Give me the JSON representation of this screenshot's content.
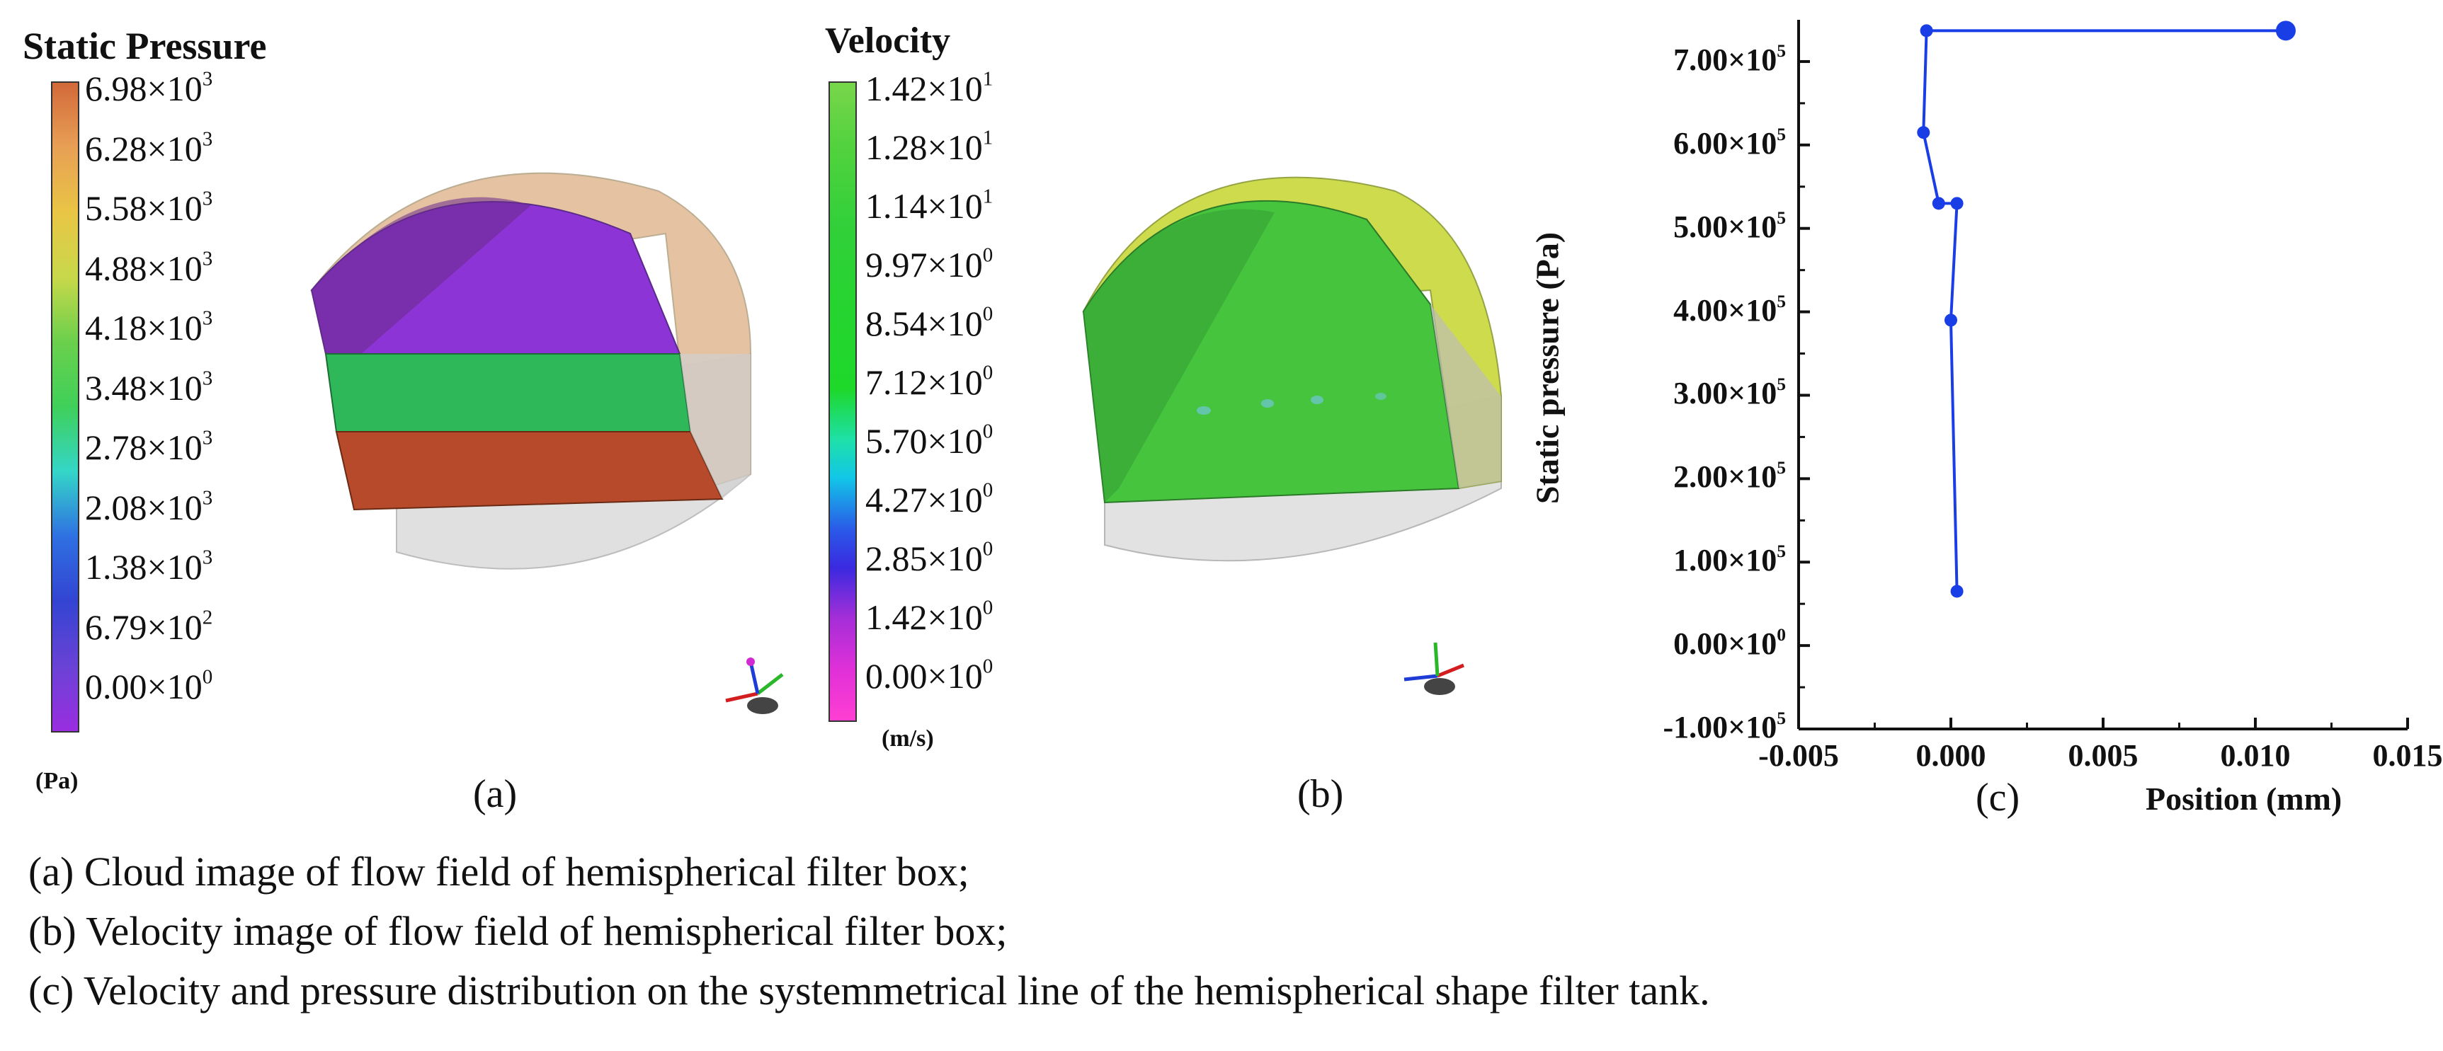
{
  "panel_a": {
    "title": "Static Pressure",
    "unit": "(Pa)",
    "label": "(a)",
    "ticks": [
      {
        "m": "6.98",
        "e": "3"
      },
      {
        "m": "6.28",
        "e": "3"
      },
      {
        "m": "5.58",
        "e": "3"
      },
      {
        "m": "4.88",
        "e": "3"
      },
      {
        "m": "4.18",
        "e": "3"
      },
      {
        "m": "3.48",
        "e": "3"
      },
      {
        "m": "2.78",
        "e": "3"
      },
      {
        "m": "2.08",
        "e": "3"
      },
      {
        "m": "1.38",
        "e": "3"
      },
      {
        "m": "6.79",
        "e": "2"
      },
      {
        "m": "0.00",
        "e": "0"
      }
    ],
    "colors": {
      "top": "#d2693a",
      "bottom": "#9a2ee0"
    }
  },
  "panel_b": {
    "title": "Velocity",
    "unit": "(m/s)",
    "label": "(b)",
    "ticks": [
      {
        "m": "1.42",
        "e": "1"
      },
      {
        "m": "1.28",
        "e": "1"
      },
      {
        "m": "1.14",
        "e": "1"
      },
      {
        "m": "9.97",
        "e": "0"
      },
      {
        "m": "8.54",
        "e": "0"
      },
      {
        "m": "7.12",
        "e": "0"
      },
      {
        "m": "5.70",
        "e": "0"
      },
      {
        "m": "4.27",
        "e": "0"
      },
      {
        "m": "2.85",
        "e": "0"
      },
      {
        "m": "1.42",
        "e": "0"
      },
      {
        "m": "0.00",
        "e": "0"
      }
    ],
    "colors": {
      "top": "#78d64a",
      "bottom": "#ff3fd2"
    }
  },
  "chart_data": {
    "type": "line",
    "label": "(c)",
    "xlabel": "Position (mm)",
    "ylabel": "Static pressure (Pa)",
    "xlim": [
      -0.005,
      0.015
    ],
    "ylim": [
      -100000,
      750000
    ],
    "x_ticks": [
      "-0.005",
      "0.000",
      "0.005",
      "0.010",
      "0.015"
    ],
    "y_ticks": [
      {
        "m": "7.00",
        "e": "5"
      },
      {
        "m": "6.00",
        "e": "5"
      },
      {
        "m": "5.00",
        "e": "5"
      },
      {
        "m": "4.00",
        "e": "5"
      },
      {
        "m": "3.00",
        "e": "5"
      },
      {
        "m": "2.00",
        "e": "5"
      },
      {
        "m": "1.00",
        "e": "5"
      },
      {
        "m": "0.00",
        "e": "0"
      },
      {
        "m": "-1.00",
        "e": "5"
      }
    ],
    "series": [
      {
        "color": "#1a3ee6",
        "points": [
          {
            "x": 0.011,
            "y": 737000
          },
          {
            "x": -0.0008,
            "y": 737000
          },
          {
            "x": -0.0009,
            "y": 615000
          },
          {
            "x": -0.0004,
            "y": 530000
          },
          {
            "x": 0.0002,
            "y": 530000
          },
          {
            "x": 0.0,
            "y": 390000
          },
          {
            "x": 0.0002,
            "y": 65000
          }
        ]
      }
    ]
  },
  "captions": [
    "(a) Cloud image of flow field of hemispherical filter box;",
    "(b) Velocity image of flow field of hemispherical filter box;",
    "(c) Velocity and pressure distribution on the systemmetrical line of the hemispherical shape filter tank."
  ]
}
